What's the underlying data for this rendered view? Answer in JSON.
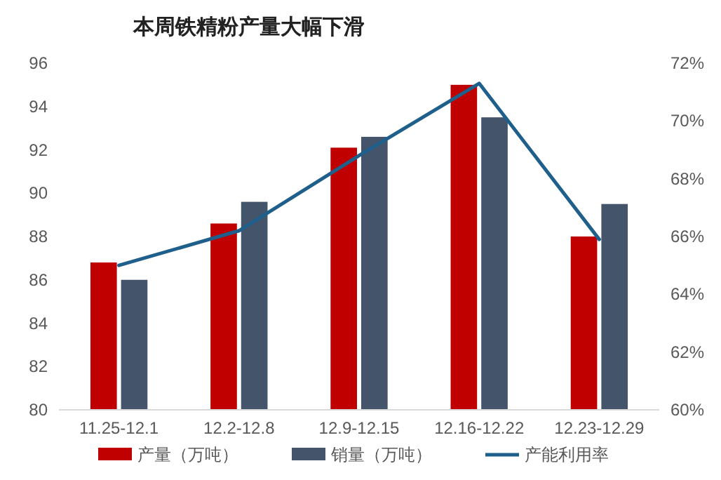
{
  "chart_data": {
    "type": "bar",
    "title": "本周铁精粉产量大幅下滑",
    "categories": [
      "11.25-12.1",
      "12.2-12.8",
      "12.9-12.15",
      "12.16-12.22",
      "12.23-12.29"
    ],
    "series": [
      {
        "name": "产量（万吨）",
        "color": "#c00000",
        "values": [
          86.8,
          88.6,
          92.1,
          95.0,
          88.0
        ]
      },
      {
        "name": "销量（万吨）",
        "color": "#44546a",
        "values": [
          86.0,
          89.6,
          92.6,
          93.5,
          89.5
        ]
      },
      {
        "name": "产能利用率",
        "type": "line",
        "axis": "y2",
        "color": "#1f5f8b",
        "values": [
          65.0,
          66.2,
          68.8,
          71.3,
          65.9
        ]
      }
    ],
    "ylim": [
      80,
      96
    ],
    "yticks": [
      80,
      82,
      84,
      86,
      88,
      90,
      92,
      94,
      96
    ],
    "y2lim": [
      60,
      72
    ],
    "y2ticks": [
      {
        "value": 60,
        "label": "60%"
      },
      {
        "value": 62,
        "label": "62%"
      },
      {
        "value": 64,
        "label": "64%"
      },
      {
        "value": 66,
        "label": "66%"
      },
      {
        "value": 68,
        "label": "68%"
      },
      {
        "value": 70,
        "label": "70%"
      },
      {
        "value": 72,
        "label": "72%"
      }
    ],
    "legend": "bottom"
  }
}
